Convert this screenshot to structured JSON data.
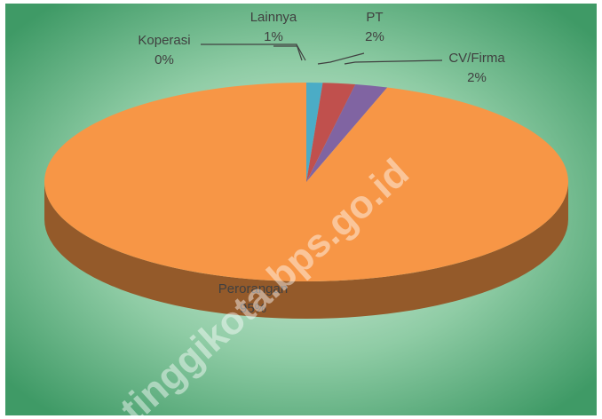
{
  "chart_data": {
    "type": "pie",
    "categories": [
      "Koperasi",
      "Lainnya",
      "PT",
      "CV/Firma",
      "Perorangan"
    ],
    "values": [
      0,
      1,
      2,
      2,
      95
    ],
    "value_labels": [
      "0%",
      "1%",
      "2%",
      "2%",
      "95%"
    ],
    "colors": [
      "#4f81bd",
      "#4bacc6",
      "#c0504d",
      "#8064a2",
      "#f79646"
    ],
    "watermark": "tinggikota.bps.go.id"
  }
}
